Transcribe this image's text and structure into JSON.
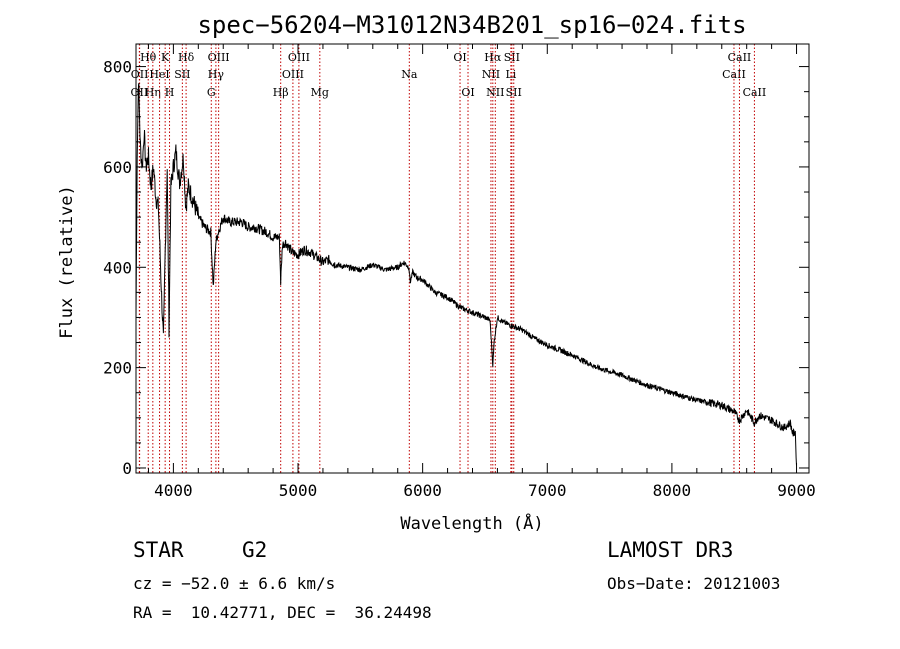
{
  "chart_data": {
    "type": "line",
    "title": "spec−56204−M31012N34B201_sp16−024.fits",
    "xlabel": "Wavelength (Å)",
    "ylabel": "Flux (relative)",
    "xlim": [
      3700,
      9100
    ],
    "ylim": [
      -10,
      845
    ],
    "x_ticks": [
      4000,
      5000,
      6000,
      7000,
      8000,
      9000
    ],
    "y_ticks": [
      0,
      200,
      400,
      600,
      800
    ],
    "grid": false,
    "series": [
      {
        "name": "flux",
        "x": [
          3700,
          3710,
          3720,
          3735,
          3750,
          3765,
          3780,
          3800,
          3820,
          3840,
          3860,
          3880,
          3900,
          3920,
          3935,
          3950,
          3965,
          3980,
          4000,
          4020,
          4050,
          4080,
          4100,
          4120,
          4150,
          4200,
          4250,
          4300,
          4320,
          4340,
          4360,
          4400,
          4450,
          4500,
          4550,
          4600,
          4650,
          4700,
          4750,
          4800,
          4850,
          4861,
          4875,
          4900,
          4950,
          5000,
          5050,
          5100,
          5150,
          5200,
          5250,
          5300,
          5400,
          5500,
          5600,
          5700,
          5800,
          5850,
          5890,
          5900,
          5920,
          5950,
          6000,
          6100,
          6200,
          6300,
          6400,
          6500,
          6540,
          6555,
          6563,
          6575,
          6600,
          6650,
          6700,
          6800,
          6900,
          7000,
          7200,
          7400,
          7600,
          7800,
          8000,
          8200,
          8400,
          8500,
          8542,
          8600,
          8662,
          8700,
          8800,
          8900,
          8950,
          8970,
          8990,
          9000
        ],
        "values": [
          300,
          630,
          780,
          640,
          600,
          670,
          600,
          620,
          560,
          600,
          540,
          520,
          380,
          250,
          440,
          600,
          280,
          560,
          600,
          630,
          570,
          620,
          520,
          560,
          540,
          500,
          480,
          470,
          360,
          450,
          470,
          500,
          490,
          490,
          490,
          480,
          480,
          475,
          470,
          460,
          460,
          370,
          445,
          450,
          430,
          425,
          435,
          430,
          420,
          410,
          415,
          405,
          400,
          395,
          405,
          395,
          400,
          410,
          400,
          370,
          390,
          380,
          375,
          350,
          340,
          320,
          310,
          300,
          295,
          240,
          205,
          255,
          300,
          290,
          285,
          275,
          258,
          245,
          225,
          200,
          185,
          165,
          150,
          135,
          125,
          112,
          95,
          115,
          90,
          105,
          95,
          80,
          90,
          68,
          72,
          5
        ]
      }
    ],
    "line_markers": [
      {
        "label": "OII",
        "wavelength": 3727,
        "row": 2
      },
      {
        "label": "OII",
        "wavelength": 3729,
        "row": 1
      },
      {
        "label": "Hθ",
        "wavelength": 3798,
        "row": 0
      },
      {
        "label": "Hη",
        "wavelength": 3835,
        "row": 2
      },
      {
        "label": "HeI",
        "wavelength": 3889,
        "row": 1
      },
      {
        "label": "K",
        "wavelength": 3934,
        "row": 0
      },
      {
        "label": "H",
        "wavelength": 3969,
        "row": 2
      },
      {
        "label": "SII",
        "wavelength": 4072,
        "row": 1
      },
      {
        "label": "Hδ",
        "wavelength": 4102,
        "row": 0
      },
      {
        "label": "G",
        "wavelength": 4304,
        "row": 2
      },
      {
        "label": "Hγ",
        "wavelength": 4341,
        "row": 1
      },
      {
        "label": "OIII",
        "wavelength": 4363,
        "row": 0
      },
      {
        "label": "Hβ",
        "wavelength": 4861,
        "row": 2
      },
      {
        "label": "OIII",
        "wavelength": 4959,
        "row": 1
      },
      {
        "label": "OIII",
        "wavelength": 5007,
        "row": 0
      },
      {
        "label": "Mg",
        "wavelength": 5175,
        "row": 2
      },
      {
        "label": "Na",
        "wavelength": 5893,
        "row": 1
      },
      {
        "label": "OI",
        "wavelength": 6300,
        "row": 0
      },
      {
        "label": "OI",
        "wavelength": 6364,
        "row": 2
      },
      {
        "label": "NII",
        "wavelength": 6548,
        "row": 1
      },
      {
        "label": "Hα",
        "wavelength": 6563,
        "row": 0
      },
      {
        "label": "NII",
        "wavelength": 6583,
        "row": 2
      },
      {
        "label": "Li",
        "wavelength": 6708,
        "row": 1
      },
      {
        "label": "SII",
        "wavelength": 6716,
        "row": 0
      },
      {
        "label": "SII",
        "wavelength": 6731,
        "row": 2
      },
      {
        "label": "CaII",
        "wavelength": 8498,
        "row": 1
      },
      {
        "label": "CaII",
        "wavelength": 8542,
        "row": 0
      },
      {
        "label": "CaII",
        "wavelength": 8662,
        "row": 2
      }
    ]
  },
  "info": {
    "object_class": "STAR",
    "subclass": "G2",
    "cz": "cz = −52.0 ± 6.6 km/s",
    "coords": "RA =  10.42771, DEC =  36.24498",
    "survey": "LAMOST DR3",
    "obs_date": "Obs−Date: 20121003"
  }
}
